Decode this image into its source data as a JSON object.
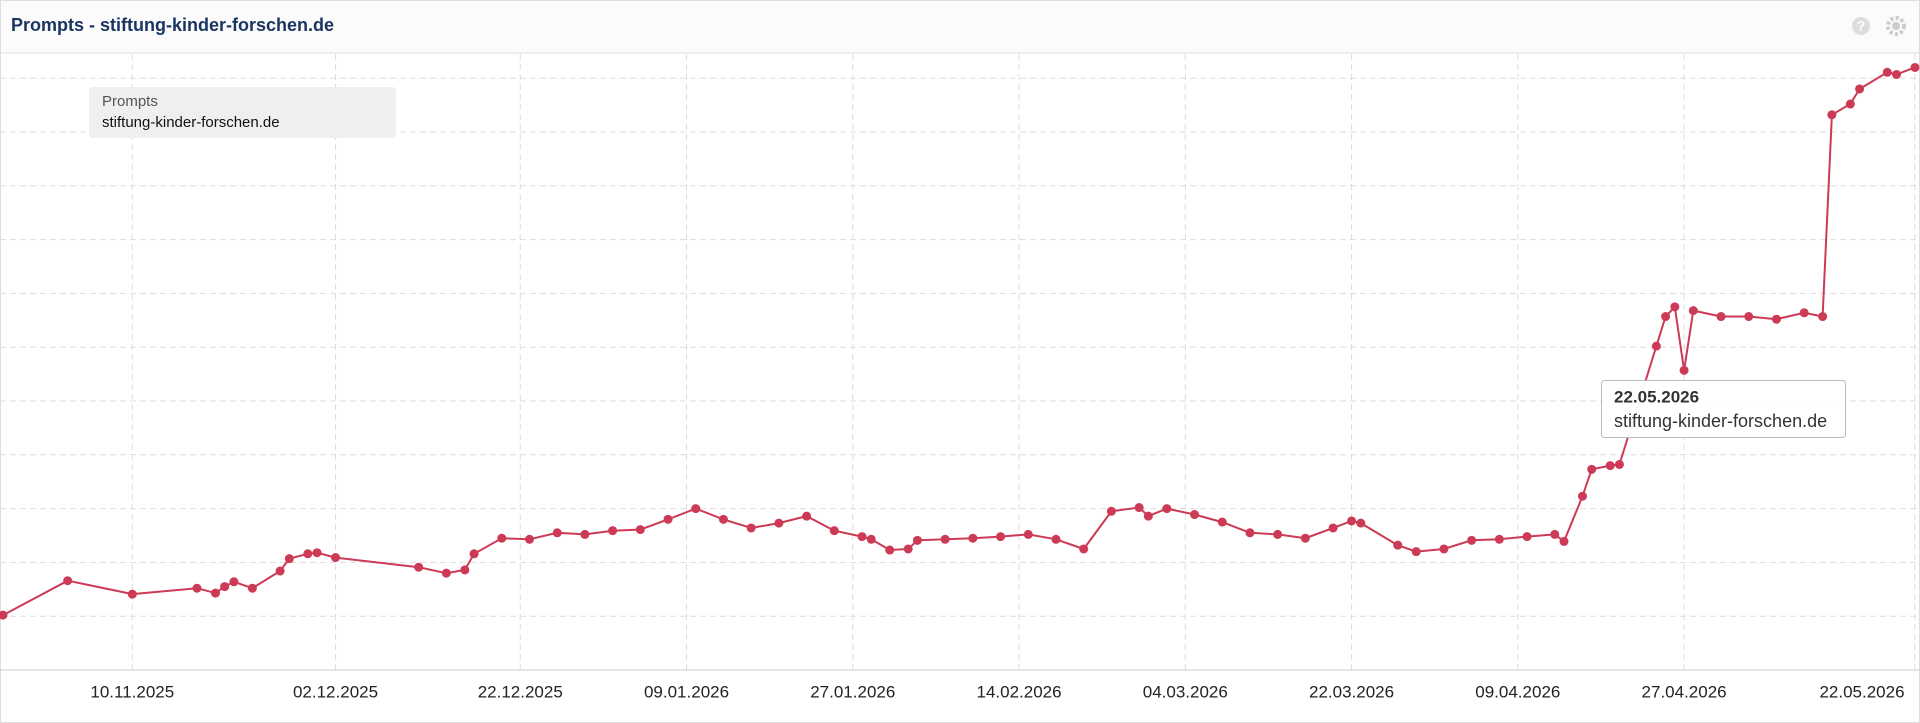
{
  "chart_data": {
    "type": "line",
    "title": "Prompts - stiftung-kinder-forschen.de",
    "legend_title": "Prompts",
    "tooltip": {
      "date": "22.05.2026",
      "label": "stiftung-kinder-forschen.de"
    },
    "x": [
      "27.10.2025",
      "03.11.2025",
      "10.11.2025",
      "17.11.2025",
      "19.11.2025",
      "20.11.2025",
      "21.11.2025",
      "23.11.2025",
      "26.11.2025",
      "27.11.2025",
      "29.11.2025",
      "30.11.2025",
      "02.12.2025",
      "11.12.2025",
      "14.12.2025",
      "16.12.2025",
      "17.12.2025",
      "20.12.2025",
      "23.12.2025",
      "26.12.2025",
      "29.12.2025",
      "01.01.2026",
      "04.01.2026",
      "07.01.2026",
      "10.01.2026",
      "13.01.2026",
      "16.01.2026",
      "19.01.2026",
      "22.01.2026",
      "25.01.2026",
      "28.01.2026",
      "29.01.2026",
      "31.01.2026",
      "02.02.2026",
      "03.02.2026",
      "06.02.2026",
      "09.02.2026",
      "12.02.2026",
      "15.02.2026",
      "18.02.2026",
      "21.02.2026",
      "24.02.2026",
      "27.02.2026",
      "28.02.2026",
      "02.03.2026",
      "05.03.2026",
      "08.03.2026",
      "11.03.2026",
      "14.03.2026",
      "17.03.2026",
      "20.03.2026",
      "22.03.2026",
      "23.03.2026",
      "27.03.2026",
      "29.03.2026",
      "01.04.2026",
      "04.04.2026",
      "07.04.2026",
      "10.04.2026",
      "13.04.2026",
      "14.04.2026",
      "16.04.2026",
      "17.04.2026",
      "19.04.2026",
      "20.04.2026",
      "24.04.2026",
      "25.04.2026",
      "26.04.2026",
      "27.04.2026",
      "28.04.2026",
      "01.05.2026",
      "04.05.2026",
      "07.05.2026",
      "10.05.2026",
      "12.05.2026",
      "13.05.2026",
      "15.05.2026",
      "16.05.2026",
      "19.05.2026",
      "20.05.2026",
      "22.05.2026"
    ],
    "series": [
      {
        "name": "stiftung-kinder-forschen.de",
        "color": "#cc3a55",
        "values": [
          1.02,
          1.66,
          1.41,
          1.52,
          1.43,
          1.55,
          1.64,
          1.52,
          1.84,
          2.07,
          2.16,
          2.18,
          2.09,
          1.91,
          1.8,
          1.86,
          2.16,
          2.45,
          2.43,
          2.55,
          2.52,
          2.59,
          2.61,
          2.8,
          3.0,
          2.8,
          2.64,
          2.73,
          2.86,
          2.59,
          2.48,
          2.43,
          2.23,
          2.25,
          2.41,
          2.43,
          2.45,
          2.48,
          2.52,
          2.43,
          2.25,
          2.95,
          3.02,
          2.86,
          3.0,
          2.89,
          2.75,
          2.55,
          2.52,
          2.45,
          2.64,
          2.77,
          2.73,
          2.32,
          2.2,
          2.25,
          2.41,
          2.43,
          2.48,
          2.52,
          2.39,
          3.23,
          3.73,
          3.8,
          3.82,
          6.02,
          6.57,
          6.75,
          5.57,
          6.68,
          6.57,
          6.57,
          6.52,
          6.64,
          6.57,
          10.32,
          10.52,
          10.8,
          11.11,
          11.07,
          11.2
        ]
      }
    ],
    "xlim": [
      "27.10.2025",
      "22.05.2026"
    ],
    "xticks": [
      "10.11.2025",
      "02.12.2025",
      "22.12.2025",
      "09.01.2026",
      "27.01.2026",
      "14.02.2026",
      "04.03.2026",
      "22.03.2026",
      "09.04.2026",
      "27.04.2026",
      "22.05.2026"
    ],
    "ylim": [
      0,
      11.45
    ],
    "yticks": [
      1,
      2,
      3,
      4,
      5,
      6,
      7,
      8,
      9,
      10,
      11
    ],
    "grid": true
  }
}
